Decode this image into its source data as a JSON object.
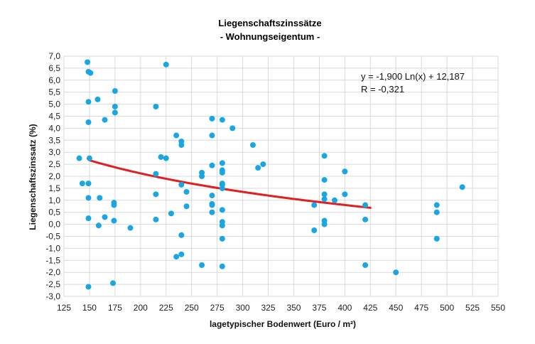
{
  "chart_data": {
    "type": "scatter",
    "title": "Liegenschaftszinssätze",
    "subtitle": "- Wohnungseigentum -",
    "xlabel": "lagetypischer Bodenwert (Euro / m²)",
    "ylabel": "Liegenschaftszinssatz (%)",
    "xlim": [
      125,
      550
    ],
    "ylim": [
      -3.0,
      7.0
    ],
    "x_ticks": [
      125,
      150,
      175,
      200,
      225,
      250,
      275,
      300,
      325,
      350,
      375,
      400,
      425,
      450,
      475,
      500,
      525,
      550
    ],
    "x_tick_labels": [
      "125",
      "150",
      "175",
      "200",
      "225",
      "250",
      "275",
      "300",
      "325",
      "350",
      "375",
      "400",
      "425",
      "450",
      "475",
      "500",
      "525",
      "550"
    ],
    "y_ticks": [
      -3.0,
      -2.5,
      -2.0,
      -1.5,
      -1.0,
      -0.5,
      0.0,
      0.5,
      1.0,
      1.5,
      2.0,
      2.5,
      3.0,
      3.5,
      4.0,
      4.5,
      5.0,
      5.5,
      6.0,
      6.5,
      7.0
    ],
    "y_tick_labels": [
      "-3,0",
      "-2,5",
      "-2,0",
      "-1,5",
      "-1,0",
      "-0,5",
      "0,0",
      "0,5",
      "1,0",
      "1,5",
      "2,0",
      "2,5",
      "3,0",
      "3,5",
      "4,0",
      "4,5",
      "5,0",
      "5,5",
      "6,0",
      "6,5",
      "7,0"
    ],
    "grid": true,
    "point_color": "#1aa6e0",
    "trend_color": "#e02020",
    "points": [
      [
        140,
        2.75
      ],
      [
        143,
        1.7
      ],
      [
        148,
        6.75
      ],
      [
        149,
        6.35
      ],
      [
        151,
        6.3
      ],
      [
        149,
        5.1
      ],
      [
        149,
        4.25
      ],
      [
        150,
        2.75
      ],
      [
        149,
        1.7
      ],
      [
        149,
        1.1
      ],
      [
        149,
        0.25
      ],
      [
        149,
        -2.6
      ],
      [
        158,
        5.2
      ],
      [
        160,
        1.1
      ],
      [
        159,
        -0.05
      ],
      [
        165,
        4.35
      ],
      [
        165,
        0.3
      ],
      [
        175,
        5.55
      ],
      [
        175,
        4.9
      ],
      [
        175,
        4.65
      ],
      [
        174,
        0.9
      ],
      [
        174,
        0.8
      ],
      [
        174,
        0.15
      ],
      [
        173,
        -2.45
      ],
      [
        190,
        -0.15
      ],
      [
        215,
        4.9
      ],
      [
        215,
        2.1
      ],
      [
        215,
        1.25
      ],
      [
        215,
        0.2
      ],
      [
        220,
        2.8
      ],
      [
        225,
        6.65
      ],
      [
        225,
        2.75
      ],
      [
        230,
        0.45
      ],
      [
        235,
        3.7
      ],
      [
        235,
        -1.35
      ],
      [
        240,
        3.45
      ],
      [
        240,
        3.3
      ],
      [
        240,
        1.65
      ],
      [
        240,
        -0.45
      ],
      [
        240,
        -1.25
      ],
      [
        245,
        1.35
      ],
      [
        245,
        0.75
      ],
      [
        260,
        2.15
      ],
      [
        260,
        2.0
      ],
      [
        260,
        -1.7
      ],
      [
        270,
        4.4
      ],
      [
        270,
        3.7
      ],
      [
        270,
        2.45
      ],
      [
        270,
        1.2
      ],
      [
        270,
        0.85
      ],
      [
        270,
        0.8
      ],
      [
        270,
        0.5
      ],
      [
        280,
        4.35
      ],
      [
        280,
        2.55
      ],
      [
        280,
        2.25
      ],
      [
        280,
        2.15
      ],
      [
        280,
        1.7
      ],
      [
        280,
        1.65
      ],
      [
        280,
        1.5
      ],
      [
        280,
        0.6
      ],
      [
        280,
        0.1
      ],
      [
        280,
        -0.05
      ],
      [
        280,
        -0.6
      ],
      [
        280,
        -1.75
      ],
      [
        290,
        4.0
      ],
      [
        310,
        3.3
      ],
      [
        315,
        2.35
      ],
      [
        320,
        2.5
      ],
      [
        370,
        0.8
      ],
      [
        370,
        -0.25
      ],
      [
        380,
        2.85
      ],
      [
        380,
        1.85
      ],
      [
        380,
        1.25
      ],
      [
        380,
        1.05
      ],
      [
        380,
        0.15
      ],
      [
        380,
        0.0
      ],
      [
        390,
        1.0
      ],
      [
        400,
        2.2
      ],
      [
        400,
        1.25
      ],
      [
        420,
        0.8
      ],
      [
        420,
        0.2
      ],
      [
        420,
        -1.7
      ],
      [
        450,
        -2.0
      ],
      [
        490,
        0.8
      ],
      [
        490,
        0.5
      ],
      [
        490,
        -0.6
      ],
      [
        515,
        1.55
      ]
    ],
    "trend": {
      "a": -1.9,
      "b": 12.187,
      "x_from": 150,
      "x_to": 425
    },
    "annotations": [
      "y =  -1,900 Ln(x) + 12,187",
      "R = -0,321"
    ]
  }
}
